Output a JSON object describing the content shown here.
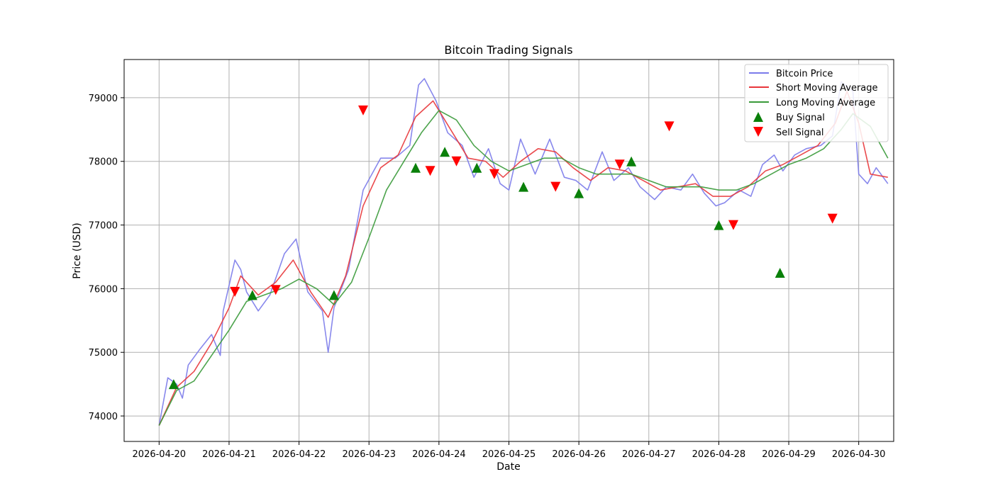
{
  "chart_data": {
    "type": "line",
    "title": "Bitcoin Trading Signals",
    "xlabel": "Date",
    "ylabel": "Price (USD)",
    "x_range": [
      "2026-04-19T12:00",
      "2026-04-30T12:00"
    ],
    "ylim": [
      73600,
      79600
    ],
    "x_ticks": [
      "2026-04-20",
      "2026-04-21",
      "2026-04-22",
      "2026-04-23",
      "2026-04-24",
      "2026-04-25",
      "2026-04-26",
      "2026-04-27",
      "2026-04-28",
      "2026-04-29",
      "2026-04-30"
    ],
    "y_ticks": [
      74000,
      75000,
      76000,
      77000,
      78000,
      79000
    ],
    "grid": true,
    "legend_position": "top-right",
    "series": [
      {
        "name": "Bitcoin Price",
        "color": "#7b7bea",
        "points": [
          [
            "2026-04-20T00:00",
            73850
          ],
          [
            "2026-04-20T03:00",
            74600
          ],
          [
            "2026-04-20T06:00",
            74500
          ],
          [
            "2026-04-20T08:00",
            74280
          ],
          [
            "2026-04-20T10:00",
            74800
          ],
          [
            "2026-04-20T14:00",
            75050
          ],
          [
            "2026-04-20T18:00",
            75280
          ],
          [
            "2026-04-20T21:00",
            74950
          ],
          [
            "2026-04-20T22:00",
            75650
          ],
          [
            "2026-04-21T02:00",
            76450
          ],
          [
            "2026-04-21T04:00",
            76300
          ],
          [
            "2026-04-21T06:00",
            75950
          ],
          [
            "2026-04-21T10:00",
            75650
          ],
          [
            "2026-04-21T14:00",
            75900
          ],
          [
            "2026-04-21T19:00",
            76550
          ],
          [
            "2026-04-21T23:00",
            76780
          ],
          [
            "2026-04-22T03:00",
            75950
          ],
          [
            "2026-04-22T08:00",
            75650
          ],
          [
            "2026-04-22T10:00",
            75000
          ],
          [
            "2026-04-22T12:00",
            75700
          ],
          [
            "2026-04-22T17:00",
            76300
          ],
          [
            "2026-04-22T22:00",
            77550
          ],
          [
            "2026-04-23T04:00",
            78050
          ],
          [
            "2026-04-23T09:00",
            78050
          ],
          [
            "2026-04-23T14:00",
            78250
          ],
          [
            "2026-04-23T17:00",
            79200
          ],
          [
            "2026-04-23T19:00",
            79300
          ],
          [
            "2026-04-23T23:00",
            78950
          ],
          [
            "2026-04-24T03:00",
            78450
          ],
          [
            "2026-04-24T08:00",
            78250
          ],
          [
            "2026-04-24T12:00",
            77750
          ],
          [
            "2026-04-24T17:00",
            78200
          ],
          [
            "2026-04-24T21:00",
            77650
          ],
          [
            "2026-04-25T00:00",
            77550
          ],
          [
            "2026-04-25T04:00",
            78350
          ],
          [
            "2026-04-25T09:00",
            77800
          ],
          [
            "2026-04-25T14:00",
            78350
          ],
          [
            "2026-04-25T19:00",
            77750
          ],
          [
            "2026-04-25T23:00",
            77700
          ],
          [
            "2026-04-26T03:00",
            77550
          ],
          [
            "2026-04-26T08:00",
            78150
          ],
          [
            "2026-04-26T12:00",
            77700
          ],
          [
            "2026-04-26T17:00",
            77900
          ],
          [
            "2026-04-26T21:00",
            77600
          ],
          [
            "2026-04-27T02:00",
            77400
          ],
          [
            "2026-04-27T06:00",
            77600
          ],
          [
            "2026-04-27T11:00",
            77550
          ],
          [
            "2026-04-27T15:00",
            77800
          ],
          [
            "2026-04-27T19:00",
            77500
          ],
          [
            "2026-04-27T23:00",
            77300
          ],
          [
            "2026-04-28T02:00",
            77350
          ],
          [
            "2026-04-28T07:00",
            77550
          ],
          [
            "2026-04-28T11:00",
            77450
          ],
          [
            "2026-04-28T15:00",
            77950
          ],
          [
            "2026-04-28T19:00",
            78100
          ],
          [
            "2026-04-28T22:00",
            77850
          ],
          [
            "2026-04-29T02:00",
            78100
          ],
          [
            "2026-04-29T06:00",
            78200
          ],
          [
            "2026-04-29T11:00",
            78250
          ],
          [
            "2026-04-29T15:00",
            78400
          ],
          [
            "2026-04-29T18:00",
            79250
          ],
          [
            "2026-04-29T22:00",
            79100
          ],
          [
            "2026-04-30T00:00",
            77800
          ],
          [
            "2026-04-30T03:00",
            77650
          ],
          [
            "2026-04-30T06:00",
            77900
          ],
          [
            "2026-04-30T10:00",
            77650
          ]
        ]
      },
      {
        "name": "Short Moving Average",
        "color": "#e8363a",
        "points": [
          [
            "2026-04-20T00:00",
            73850
          ],
          [
            "2026-04-20T06:00",
            74450
          ],
          [
            "2026-04-20T12:00",
            74700
          ],
          [
            "2026-04-20T18:00",
            75150
          ],
          [
            "2026-04-21T00:00",
            75700
          ],
          [
            "2026-04-21T04:00",
            76200
          ],
          [
            "2026-04-21T10:00",
            75900
          ],
          [
            "2026-04-21T16:00",
            76100
          ],
          [
            "2026-04-21T22:00",
            76450
          ],
          [
            "2026-04-22T04:00",
            75950
          ],
          [
            "2026-04-22T10:00",
            75550
          ],
          [
            "2026-04-22T16:00",
            76200
          ],
          [
            "2026-04-22T22:00",
            77300
          ],
          [
            "2026-04-23T04:00",
            77900
          ],
          [
            "2026-04-23T10:00",
            78100
          ],
          [
            "2026-04-23T16:00",
            78700
          ],
          [
            "2026-04-23T22:00",
            78950
          ],
          [
            "2026-04-24T04:00",
            78500
          ],
          [
            "2026-04-24T10:00",
            78050
          ],
          [
            "2026-04-24T16:00",
            78000
          ],
          [
            "2026-04-24T22:00",
            77750
          ],
          [
            "2026-04-25T04:00",
            78000
          ],
          [
            "2026-04-25T10:00",
            78200
          ],
          [
            "2026-04-25T16:00",
            78150
          ],
          [
            "2026-04-25T22:00",
            77900
          ],
          [
            "2026-04-26T04:00",
            77700
          ],
          [
            "2026-04-26T10:00",
            77900
          ],
          [
            "2026-04-26T16:00",
            77850
          ],
          [
            "2026-04-26T22:00",
            77700
          ],
          [
            "2026-04-27T04:00",
            77550
          ],
          [
            "2026-04-27T10:00",
            77600
          ],
          [
            "2026-04-27T16:00",
            77650
          ],
          [
            "2026-04-27T22:00",
            77450
          ],
          [
            "2026-04-28T04:00",
            77450
          ],
          [
            "2026-04-28T10:00",
            77600
          ],
          [
            "2026-04-28T16:00",
            77850
          ],
          [
            "2026-04-28T22:00",
            77950
          ],
          [
            "2026-04-29T04:00",
            78100
          ],
          [
            "2026-04-29T10:00",
            78250
          ],
          [
            "2026-04-29T16:00",
            78600
          ],
          [
            "2026-04-29T20:00",
            79100
          ],
          [
            "2026-04-30T00:00",
            78600
          ],
          [
            "2026-04-30T04:00",
            77800
          ],
          [
            "2026-04-30T10:00",
            77750
          ]
        ]
      },
      {
        "name": "Long Moving Average",
        "color": "#3a9a3a",
        "points": [
          [
            "2026-04-20T00:00",
            73850
          ],
          [
            "2026-04-20T06:00",
            74400
          ],
          [
            "2026-04-20T12:00",
            74550
          ],
          [
            "2026-04-20T18:00",
            74950
          ],
          [
            "2026-04-21T00:00",
            75350
          ],
          [
            "2026-04-21T06:00",
            75800
          ],
          [
            "2026-04-21T12:00",
            75900
          ],
          [
            "2026-04-21T18:00",
            76000
          ],
          [
            "2026-04-22T00:00",
            76150
          ],
          [
            "2026-04-22T06:00",
            76000
          ],
          [
            "2026-04-22T12:00",
            75750
          ],
          [
            "2026-04-22T18:00",
            76100
          ],
          [
            "2026-04-23T00:00",
            76800
          ],
          [
            "2026-04-23T06:00",
            77550
          ],
          [
            "2026-04-23T12:00",
            78000
          ],
          [
            "2026-04-23T18:00",
            78450
          ],
          [
            "2026-04-24T00:00",
            78800
          ],
          [
            "2026-04-24T06:00",
            78650
          ],
          [
            "2026-04-24T12:00",
            78250
          ],
          [
            "2026-04-24T18:00",
            78000
          ],
          [
            "2026-04-25T00:00",
            77850
          ],
          [
            "2026-04-25T06:00",
            77950
          ],
          [
            "2026-04-25T12:00",
            78050
          ],
          [
            "2026-04-25T18:00",
            78050
          ],
          [
            "2026-04-26T00:00",
            77900
          ],
          [
            "2026-04-26T06:00",
            77800
          ],
          [
            "2026-04-26T12:00",
            77800
          ],
          [
            "2026-04-26T18:00",
            77800
          ],
          [
            "2026-04-27T00:00",
            77700
          ],
          [
            "2026-04-27T06:00",
            77600
          ],
          [
            "2026-04-27T12:00",
            77600
          ],
          [
            "2026-04-27T18:00",
            77600
          ],
          [
            "2026-04-28T00:00",
            77550
          ],
          [
            "2026-04-28T06:00",
            77550
          ],
          [
            "2026-04-28T12:00",
            77650
          ],
          [
            "2026-04-28T18:00",
            77800
          ],
          [
            "2026-04-29T00:00",
            77950
          ],
          [
            "2026-04-29T06:00",
            78050
          ],
          [
            "2026-04-29T12:00",
            78200
          ],
          [
            "2026-04-29T18:00",
            78500
          ],
          [
            "2026-04-29T22:00",
            78750
          ],
          [
            "2026-04-30T04:00",
            78550
          ],
          [
            "2026-04-30T10:00",
            78050
          ]
        ]
      }
    ],
    "buy_signals": {
      "name": "Buy Signal",
      "color": "#0a800a",
      "points": [
        [
          "2026-04-20T05:00",
          74500
        ],
        [
          "2026-04-21T08:00",
          75900
        ],
        [
          "2026-04-22T12:00",
          75900
        ],
        [
          "2026-04-23T16:00",
          77900
        ],
        [
          "2026-04-24T02:00",
          78150
        ],
        [
          "2026-04-24T13:00",
          77900
        ],
        [
          "2026-04-25T05:00",
          77600
        ],
        [
          "2026-04-26T00:00",
          77500
        ],
        [
          "2026-04-26T18:00",
          78000
        ],
        [
          "2026-04-28T00:00",
          77000
        ],
        [
          "2026-04-28T21:00",
          76250
        ]
      ]
    },
    "sell_signals": {
      "name": "Sell Signal",
      "color": "#ff0000",
      "points": [
        [
          "2026-04-21T02:00",
          75950
        ],
        [
          "2026-04-21T16:00",
          75980
        ],
        [
          "2026-04-22T22:00",
          78800
        ],
        [
          "2026-04-23T21:00",
          77850
        ],
        [
          "2026-04-24T06:00",
          78000
        ],
        [
          "2026-04-24T19:00",
          77800
        ],
        [
          "2026-04-25T16:00",
          77600
        ],
        [
          "2026-04-26T14:00",
          77950
        ],
        [
          "2026-04-27T07:00",
          78550
        ],
        [
          "2026-04-28T05:00",
          77000
        ],
        [
          "2026-04-29T15:00",
          77100
        ]
      ]
    }
  }
}
